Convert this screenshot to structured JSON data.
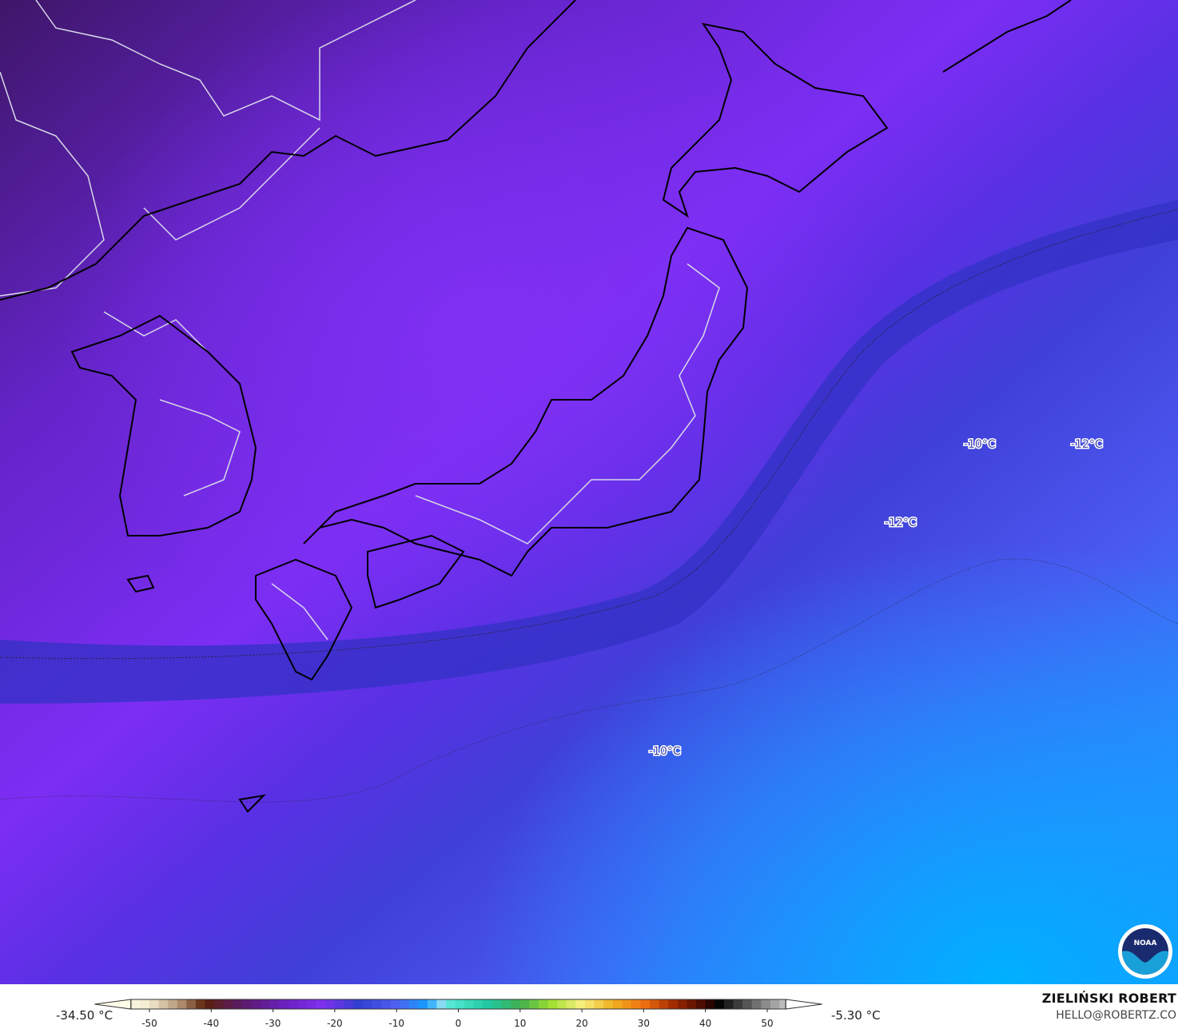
{
  "map": {
    "contour_labels": [
      {
        "text": "-10°C"
      },
      {
        "text": "-12°C"
      },
      {
        "text": "-12°C"
      },
      {
        "text": "-10°C"
      }
    ],
    "colors": {
      "cold_northwest": "#4a1a7e",
      "mid_purple": "#7a2ef2",
      "dark_band": "#3436c8",
      "blue": "#4a55ee",
      "light_blue": "#0aa6ff",
      "coastline": "#000000",
      "borders": "#d8d8e8"
    },
    "logo": "noaa-logo"
  },
  "legend": {
    "min_label": "-34.50 °C",
    "max_label": "-5.30 °C",
    "ticks": [
      "-50",
      "-40",
      "-30",
      "-20",
      "-10",
      "0",
      "10",
      "20",
      "30",
      "40",
      "50"
    ],
    "range": [
      -55,
      55
    ],
    "colormap": [
      [
        -55,
        "#fffde8"
      ],
      [
        -50,
        "#f3ead0"
      ],
      [
        -45,
        "#b09070"
      ],
      [
        -41,
        "#5a2008"
      ],
      [
        -35,
        "#5a1a6a"
      ],
      [
        -28,
        "#6a20c0"
      ],
      [
        -22,
        "#8030f0"
      ],
      [
        -16,
        "#3040d0"
      ],
      [
        -10,
        "#5060f0"
      ],
      [
        -5,
        "#10a0ff"
      ],
      [
        -3,
        "#90d8f8"
      ],
      [
        -1,
        "#50e8d0"
      ],
      [
        5,
        "#20c8a0"
      ],
      [
        10,
        "#40b050"
      ],
      [
        15,
        "#a0e030"
      ],
      [
        20,
        "#f8f080"
      ],
      [
        25,
        "#f0b020"
      ],
      [
        30,
        "#f07010"
      ],
      [
        35,
        "#a02800"
      ],
      [
        40,
        "#400800"
      ],
      [
        42,
        "#000000"
      ],
      [
        50,
        "#909090"
      ],
      [
        55,
        "#e0e0e0"
      ]
    ]
  },
  "credit": {
    "name": "ZIELIŃSKI ROBERT",
    "email": "HELLO@ROBERTZ.CO"
  }
}
